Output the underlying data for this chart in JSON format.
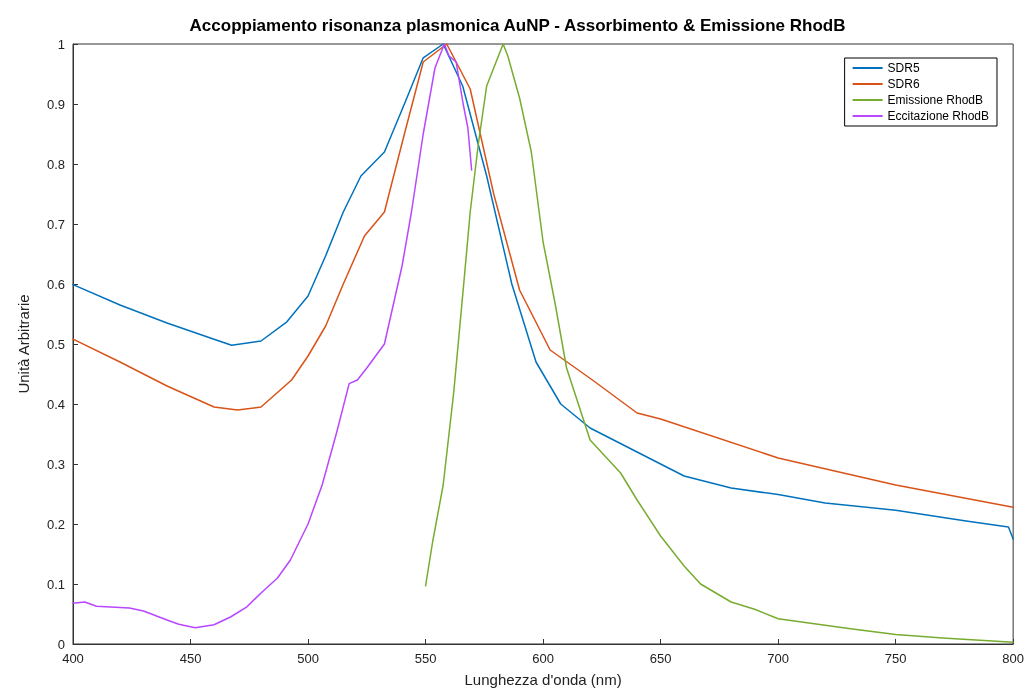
{
  "chart_data": {
    "type": "line",
    "title": "Accoppiamento risonanza plasmonica AuNP - Assorbimento & Emissione RhodB",
    "xlabel": "Lunghezza d'onda (nm)",
    "ylabel": "Unità Arbitrarie",
    "xlim": [
      400,
      800
    ],
    "xticks": [
      400,
      450,
      500,
      550,
      600,
      650,
      700,
      750,
      800
    ],
    "ylim": [
      0,
      1
    ],
    "yticks": [
      0,
      0.1,
      0.2,
      0.3,
      0.4,
      0.5,
      0.6,
      0.7,
      0.8,
      0.9,
      1
    ],
    "grid": false,
    "legend": "top right",
    "marker": "none",
    "line_style": "solid",
    "series": [
      {
        "name": "SDR5",
        "color": "#0072bd",
        "x": [
          400,
          420,
          440,
          460,
          467.5,
          480,
          491,
          500,
          507.5,
          515,
          522.5,
          532.5,
          541,
          549,
          557.5,
          565.8,
          576,
          586.7,
          597,
          607.5,
          620,
          640,
          660,
          680,
          700,
          720,
          750,
          780,
          798,
          800
        ],
        "values": [
          0.599,
          0.565,
          0.535,
          0.508,
          0.498,
          0.505,
          0.537,
          0.58,
          0.647,
          0.72,
          0.78,
          0.82,
          0.9,
          0.977,
          1.0,
          0.93,
          0.78,
          0.6,
          0.47,
          0.4,
          0.36,
          0.32,
          0.28,
          0.26,
          0.249,
          0.235,
          0.223,
          0.205,
          0.195,
          0.175
        ]
      },
      {
        "name": "SDR6",
        "color": "#d95319",
        "x": [
          400,
          420,
          440,
          460,
          470,
          480,
          493,
          500,
          507.5,
          515,
          524,
          532.5,
          541,
          549,
          559,
          569,
          579,
          590,
          603,
          621,
          640,
          650,
          700,
          750,
          800
        ],
        "values": [
          0.508,
          0.47,
          0.43,
          0.395,
          0.39,
          0.395,
          0.44,
          0.48,
          0.53,
          0.6,
          0.68,
          0.72,
          0.85,
          0.97,
          1.0,
          0.925,
          0.75,
          0.59,
          0.49,
          0.44,
          0.385,
          0.375,
          0.31,
          0.265,
          0.228
        ]
      },
      {
        "name": "Emissione RhodB",
        "color": "#77ac30",
        "x": [
          550,
          553,
          557.5,
          562,
          566,
          569,
          572.5,
          576,
          580,
          583,
          585,
          590,
          595,
          600,
          605,
          610,
          615,
          620,
          633,
          640,
          650,
          660,
          667,
          680,
          690,
          700,
          730,
          750,
          770,
          800
        ],
        "values": [
          0.097,
          0.17,
          0.265,
          0.42,
          0.59,
          0.72,
          0.835,
          0.93,
          0.97,
          1.0,
          0.98,
          0.91,
          0.82,
          0.67,
          0.57,
          0.46,
          0.4,
          0.34,
          0.285,
          0.24,
          0.18,
          0.13,
          0.1,
          0.07,
          0.058,
          0.042,
          0.026,
          0.016,
          0.01,
          0.003
        ]
      },
      {
        "name": "Eccitazione RhodB",
        "color": "#b847ff",
        "x": [
          400,
          405,
          410,
          424,
          430,
          440,
          445,
          452,
          460,
          467,
          474,
          480,
          487,
          492.5,
          500,
          506,
          512,
          517.5,
          521,
          525,
          532.5,
          540,
          544,
          549,
          554,
          558,
          560,
          563,
          566,
          568,
          569.6
        ],
        "values": [
          0.068,
          0.07,
          0.063,
          0.06,
          0.055,
          0.04,
          0.033,
          0.027,
          0.032,
          0.045,
          0.062,
          0.085,
          0.11,
          0.14,
          0.2,
          0.265,
          0.35,
          0.434,
          0.44,
          0.46,
          0.5,
          0.63,
          0.72,
          0.85,
          0.96,
          1.0,
          0.98,
          0.97,
          0.9,
          0.86,
          0.79
        ]
      }
    ]
  }
}
